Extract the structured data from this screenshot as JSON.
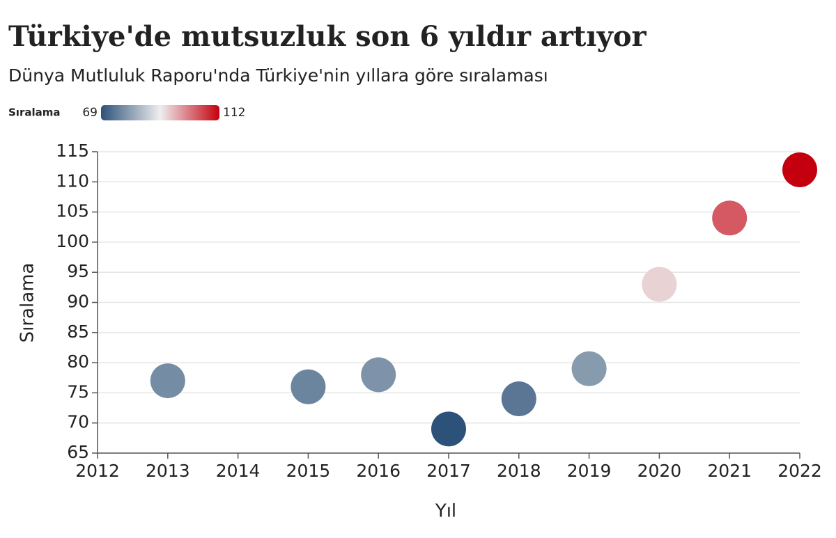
{
  "chart_data": {
    "type": "scatter",
    "title": "Türkiye'de mutsuzluk son 6 yıldır artıyor",
    "subtitle": "Dünya Mutluluk Raporu'nda Türkiye'nin yıllara göre sıralaması",
    "x_label": "Yıl",
    "y_label": "Sıralama",
    "x": [
      2013,
      2015,
      2016,
      2017,
      2018,
      2019,
      2020,
      2021,
      2022
    ],
    "values": [
      77,
      76,
      78,
      69,
      74,
      79,
      93,
      104,
      112
    ],
    "xlim": [
      2012,
      2022
    ],
    "xticks": [
      2012,
      2013,
      2014,
      2015,
      2016,
      2017,
      2018,
      2019,
      2020,
      2021,
      2022
    ],
    "ylim": [
      65,
      115
    ],
    "yticks": [
      65,
      70,
      75,
      80,
      85,
      90,
      95,
      100,
      105,
      110,
      115
    ],
    "grid": true,
    "colorscale": {
      "label": "Sıralama",
      "min": 69,
      "max": 112,
      "colors": [
        "#2d5279",
        "#eeeeee",
        "#c4000f"
      ]
    }
  }
}
